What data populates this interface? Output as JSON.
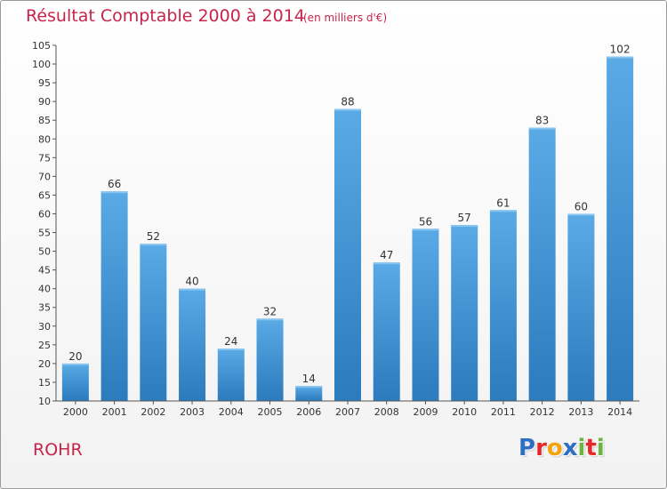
{
  "colors": {
    "accent": "#c8234a",
    "bar_top": "#5aaae6",
    "bar_bottom": "#2b7bbd",
    "axis": "#555555"
  },
  "header": {
    "title": "Résultat Comptable 2000 à 2014",
    "subtitle": "(en milliers d'€)"
  },
  "footer": {
    "commune": "ROHR",
    "logo_letters": [
      {
        "char": "P",
        "color": "#2e6fc2"
      },
      {
        "char": "r",
        "color": "#e5292b"
      },
      {
        "char": "o",
        "color": "#f5a30a"
      },
      {
        "char": "x",
        "color": "#2e6fc2"
      },
      {
        "char": "i",
        "color": "#6db33f"
      },
      {
        "char": "t",
        "color": "#e5292b"
      },
      {
        "char": "i",
        "color": "#6db33f"
      }
    ]
  },
  "chart_data": {
    "type": "bar",
    "title": "Résultat Comptable 2000 à 2014",
    "subtitle": "(en milliers d'€)",
    "xlabel": "",
    "ylabel": "",
    "categories": [
      "2000",
      "2001",
      "2002",
      "2003",
      "2004",
      "2005",
      "2006",
      "2007",
      "2008",
      "2009",
      "2010",
      "2011",
      "2012",
      "2013",
      "2014"
    ],
    "values": [
      20,
      66,
      52,
      40,
      24,
      32,
      14,
      88,
      47,
      56,
      57,
      61,
      83,
      60,
      102
    ],
    "value_labels": [
      "20",
      "66",
      "52",
      "40",
      "24",
      "32",
      "14",
      "88",
      "47",
      "56",
      "57",
      "61",
      "83",
      "60",
      "102"
    ],
    "ylim": [
      10,
      105
    ],
    "yticks": [
      10,
      15,
      20,
      25,
      30,
      35,
      40,
      45,
      50,
      55,
      60,
      65,
      70,
      75,
      80,
      85,
      90,
      95,
      100,
      105
    ],
    "ytick_labels": [
      "10",
      "15",
      "20",
      "25",
      "30",
      "35",
      "40",
      "45",
      "50",
      "55",
      "60",
      "65",
      "70",
      "75",
      "80",
      "85",
      "90",
      "95",
      "100",
      "105"
    ],
    "grid": false
  }
}
